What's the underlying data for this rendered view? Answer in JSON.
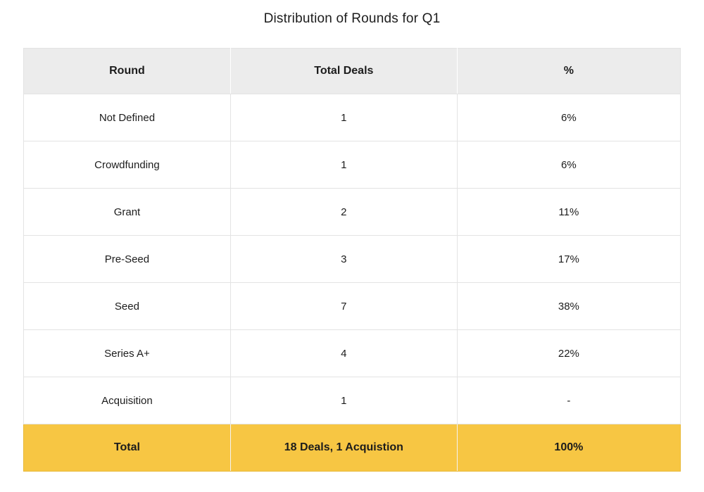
{
  "page": {
    "title": "Distribution of Rounds for Q1"
  },
  "table": {
    "headers": [
      "Round",
      "Total Deals",
      "%"
    ],
    "rows": [
      [
        "Not Defined",
        "1",
        "6%"
      ],
      [
        "Crowdfunding",
        "1",
        "6%"
      ],
      [
        "Grant",
        "2",
        "11%"
      ],
      [
        "Pre-Seed",
        "3",
        "17%"
      ],
      [
        "Seed",
        "7",
        "38%"
      ],
      [
        "Series A+",
        "4",
        "22%"
      ],
      [
        "Acquisition",
        "1",
        "-"
      ]
    ],
    "total_row": [
      "Total",
      "18 Deals, 1 Acquistion",
      "100%"
    ]
  },
  "colors": {
    "header_bg": "#ececec",
    "total_row_bg": "#f7c643",
    "row_border": "#e3e3e3",
    "text": "#1c1c1c"
  },
  "chart_data": {
    "type": "table",
    "title": "Distribution of Rounds for Q1",
    "columns": [
      "Round",
      "Total Deals",
      "%"
    ],
    "categories": [
      "Not Defined",
      "Crowdfunding",
      "Grant",
      "Pre-Seed",
      "Seed",
      "Series A+",
      "Acquisition"
    ],
    "total_deals": [
      1,
      1,
      2,
      3,
      7,
      4,
      1
    ],
    "percent_labels": [
      "6%",
      "6%",
      "11%",
      "17%",
      "38%",
      "22%",
      "-"
    ],
    "percent_values": [
      6,
      6,
      11,
      17,
      38,
      22,
      null
    ],
    "total": {
      "label": "Total",
      "deals_label": "18 Deals, 1 Acquistion",
      "percent_label": "100%"
    },
    "layout_hints": {
      "header_background": "#ececec",
      "total_row_background": "#f7c643",
      "grid": true,
      "title_position": "top-center"
    }
  }
}
